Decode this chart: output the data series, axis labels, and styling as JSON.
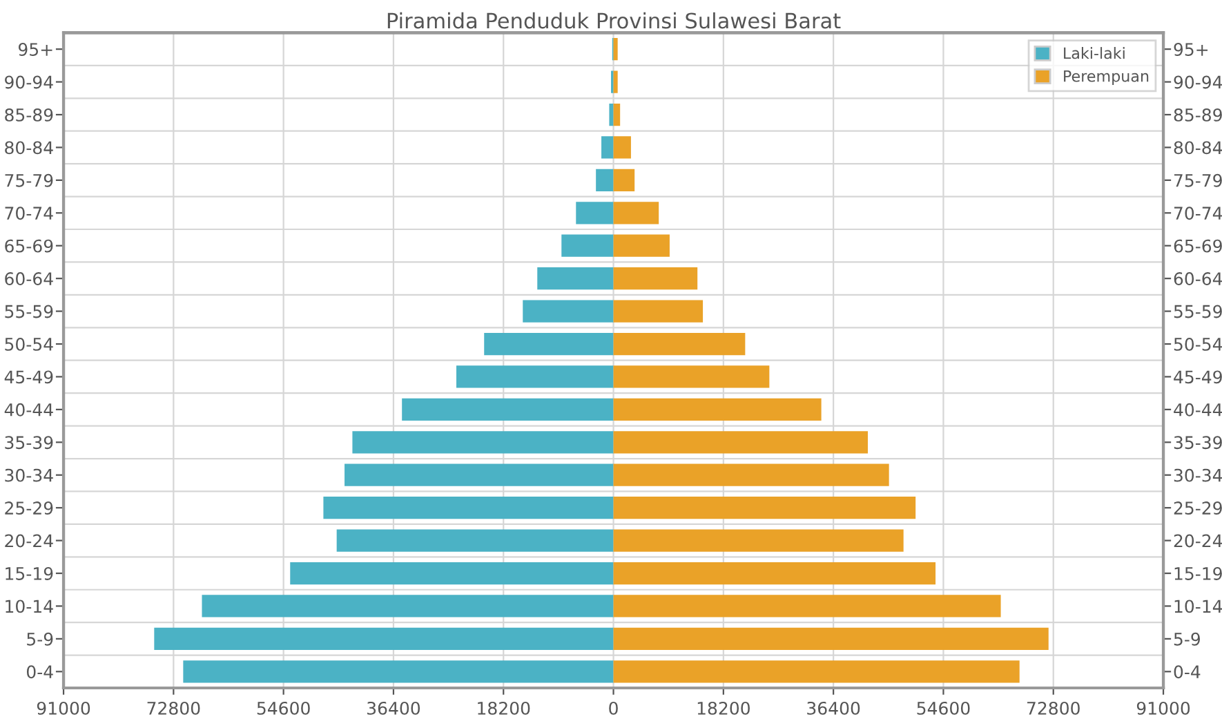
{
  "chart_data": {
    "type": "bar",
    "orientation": "horizontal",
    "title": "Piramida Penduduk Provinsi Sulawesi Barat",
    "categories": [
      "95+",
      "90-94",
      "85-89",
      "80-84",
      "75-79",
      "70-74",
      "65-69",
      "60-64",
      "55-59",
      "50-54",
      "45-49",
      "40-44",
      "35-39",
      "30-34",
      "25-29",
      "20-24",
      "15-19",
      "10-14",
      "5-9",
      "0-4"
    ],
    "series": [
      {
        "name": "Laki-laki",
        "color": "#4bb2c5",
        "values": [
          -200,
          -400,
          -700,
          -2000,
          -2900,
          -6200,
          -8600,
          -12600,
          -15000,
          -21400,
          -26000,
          -35000,
          -43200,
          -44500,
          -48000,
          -45800,
          -53500,
          -68100,
          -76000,
          -71200
        ]
      },
      {
        "name": "Perempuan",
        "color": "#eaa228",
        "values": [
          700,
          700,
          1100,
          2900,
          3500,
          7500,
          9300,
          13900,
          14800,
          21800,
          25800,
          34400,
          42100,
          45600,
          50000,
          48000,
          53300,
          64100,
          72000,
          67200
        ]
      }
    ],
    "xlim": [
      -91000,
      91000
    ],
    "xticks": [
      {
        "value": -91000,
        "label": "91000"
      },
      {
        "value": -72800,
        "label": "72800"
      },
      {
        "value": -54600,
        "label": "54600"
      },
      {
        "value": -36400,
        "label": "36400"
      },
      {
        "value": -18200,
        "label": "18200"
      },
      0,
      18200,
      36400,
      54600,
      72800,
      91000
    ],
    "stacked": true,
    "grid": true,
    "legend": "top right"
  }
}
